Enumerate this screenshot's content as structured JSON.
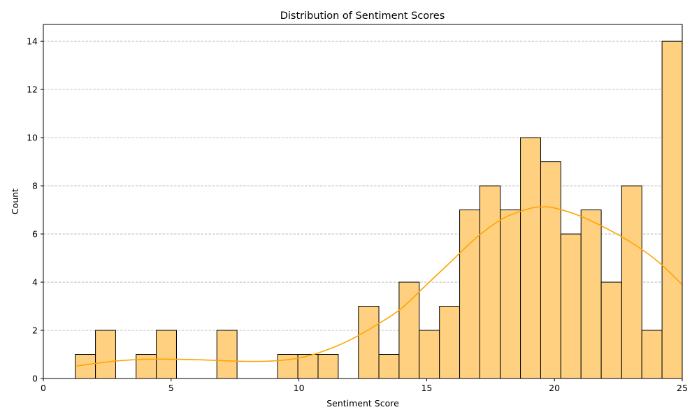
{
  "chart_data": {
    "type": "bar",
    "title": "Distribution of Sentiment Scores",
    "xlabel": "Sentiment Score",
    "ylabel": "Count",
    "xlim": [
      0,
      25
    ],
    "ylim": [
      0,
      14.7
    ],
    "xticks": [
      0,
      5,
      10,
      15,
      20,
      25
    ],
    "yticks": [
      0,
      2,
      4,
      6,
      8,
      10,
      12,
      14
    ],
    "grid": "y-dashed",
    "bar_color": "#ffd080",
    "kde_color": "#ffa500",
    "bins": [
      {
        "x0": 1.25,
        "x1": 2.04,
        "count": 1
      },
      {
        "x0": 2.04,
        "x1": 2.83,
        "count": 2
      },
      {
        "x0": 2.83,
        "x1": 3.63,
        "count": 0
      },
      {
        "x0": 3.63,
        "x1": 4.42,
        "count": 1
      },
      {
        "x0": 4.42,
        "x1": 5.21,
        "count": 2
      },
      {
        "x0": 5.21,
        "x1": 6.0,
        "count": 0
      },
      {
        "x0": 6.0,
        "x1": 6.79,
        "count": 0
      },
      {
        "x0": 6.79,
        "x1": 7.58,
        "count": 2
      },
      {
        "x0": 7.58,
        "x1": 8.38,
        "count": 0
      },
      {
        "x0": 8.38,
        "x1": 9.17,
        "count": 0
      },
      {
        "x0": 9.17,
        "x1": 9.96,
        "count": 1
      },
      {
        "x0": 9.96,
        "x1": 10.75,
        "count": 1
      },
      {
        "x0": 10.75,
        "x1": 11.54,
        "count": 1
      },
      {
        "x0": 11.54,
        "x1": 12.33,
        "count": 0
      },
      {
        "x0": 12.33,
        "x1": 13.13,
        "count": 3
      },
      {
        "x0": 13.13,
        "x1": 13.92,
        "count": 1
      },
      {
        "x0": 13.92,
        "x1": 14.71,
        "count": 4
      },
      {
        "x0": 14.71,
        "x1": 15.5,
        "count": 2
      },
      {
        "x0": 15.5,
        "x1": 16.29,
        "count": 3
      },
      {
        "x0": 16.29,
        "x1": 17.08,
        "count": 7
      },
      {
        "x0": 17.08,
        "x1": 17.88,
        "count": 8
      },
      {
        "x0": 17.88,
        "x1": 18.67,
        "count": 7
      },
      {
        "x0": 18.67,
        "x1": 19.46,
        "count": 10
      },
      {
        "x0": 19.46,
        "x1": 20.25,
        "count": 9
      },
      {
        "x0": 20.25,
        "x1": 21.04,
        "count": 6
      },
      {
        "x0": 21.04,
        "x1": 21.83,
        "count": 7
      },
      {
        "x0": 21.83,
        "x1": 22.63,
        "count": 4
      },
      {
        "x0": 22.63,
        "x1": 23.42,
        "count": 8
      },
      {
        "x0": 23.42,
        "x1": 24.21,
        "count": 2
      },
      {
        "x0": 24.21,
        "x1": 25.0,
        "count": 14
      }
    ],
    "kde": {
      "x": [
        1.3,
        2,
        3,
        4,
        5,
        6,
        7,
        8,
        9,
        10,
        11,
        12,
        13,
        14,
        15,
        16,
        17,
        18,
        19,
        19.5,
        20,
        21,
        22,
        23,
        24,
        25
      ],
      "y": [
        0.52,
        0.62,
        0.74,
        0.8,
        0.8,
        0.78,
        0.74,
        0.71,
        0.73,
        0.85,
        1.15,
        1.6,
        2.2,
        2.9,
        3.9,
        4.9,
        5.9,
        6.65,
        7.05,
        7.12,
        7.08,
        6.75,
        6.25,
        5.65,
        4.9,
        3.9
      ]
    }
  }
}
